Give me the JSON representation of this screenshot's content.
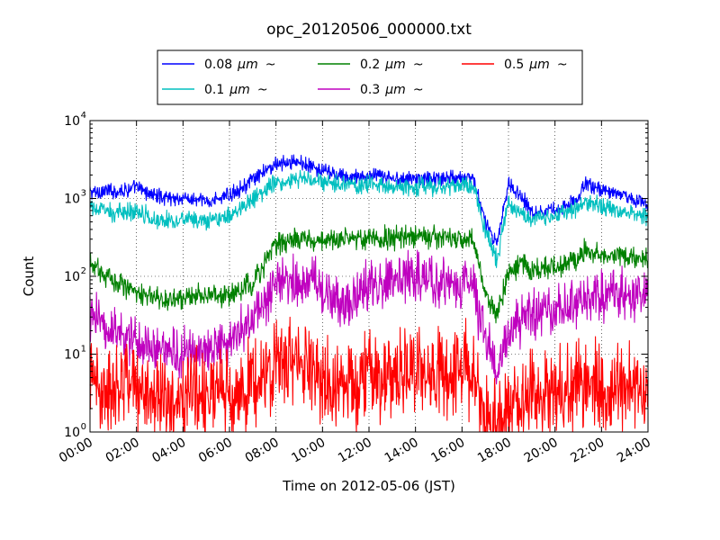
{
  "chart_data": {
    "type": "line",
    "title": "opc_20120506_000000.txt",
    "xlabel": "Time on 2012-05-06 (JST)",
    "ylabel": "Count",
    "x_unit": "hour",
    "xlim": [
      0,
      24
    ],
    "ylim": [
      1,
      10000
    ],
    "yscale": "log",
    "grid": true,
    "legend_placement": "top-center, outside plot",
    "x_tick_labels": [
      "00:00",
      "02:00",
      "04:00",
      "06:00",
      "08:00",
      "10:00",
      "12:00",
      "14:00",
      "16:00",
      "18:00",
      "20:00",
      "22:00",
      "24:00"
    ],
    "y_tick_labels": [
      {
        "base": "10",
        "exp": "0"
      },
      {
        "base": "10",
        "exp": "1"
      },
      {
        "base": "10",
        "exp": "2"
      },
      {
        "base": "10",
        "exp": "3"
      },
      {
        "base": "10",
        "exp": "4"
      }
    ],
    "x": [
      0,
      1,
      2,
      3,
      4,
      5,
      6,
      7,
      8,
      9,
      10,
      11,
      12,
      13,
      14,
      15,
      16,
      16.5,
      17,
      17.5,
      18,
      18.5,
      19,
      20,
      21,
      21.3,
      22,
      23,
      24
    ],
    "series": [
      {
        "name": "0.08",
        "unit": "μm",
        "suffix": "~",
        "color": "#0000ff",
        "values": [
          1200,
          1250,
          1350,
          1050,
          1000,
          900,
          1100,
          1700,
          2800,
          3000,
          2200,
          1900,
          1950,
          1800,
          1800,
          1800,
          1900,
          1800,
          500,
          250,
          1600,
          1100,
          700,
          700,
          950,
          1600,
          1300,
          1100,
          850
        ]
      },
      {
        "name": "0.1",
        "unit": "μm",
        "suffix": "~",
        "color": "#00bfbf",
        "values": [
          750,
          650,
          700,
          520,
          540,
          480,
          600,
          1000,
          1600,
          1800,
          1550,
          1500,
          1500,
          1400,
          1400,
          1450,
          1500,
          1450,
          400,
          160,
          900,
          650,
          550,
          600,
          750,
          900,
          800,
          700,
          580
        ]
      },
      {
        "name": "0.2",
        "unit": "μm",
        "suffix": "~",
        "color": "#008000",
        "values": [
          140,
          90,
          65,
          48,
          55,
          58,
          55,
          80,
          260,
          300,
          280,
          320,
          300,
          310,
          320,
          320,
          300,
          280,
          60,
          32,
          110,
          140,
          120,
          130,
          170,
          210,
          190,
          180,
          160
        ]
      },
      {
        "name": "0.3",
        "unit": "μm",
        "suffix": "~",
        "color": "#bf00bf",
        "values": [
          30,
          20,
          16,
          10,
          11,
          13,
          15,
          24,
          80,
          95,
          75,
          40,
          80,
          85,
          95,
          80,
          75,
          70,
          14,
          6,
          20,
          28,
          32,
          38,
          45,
          50,
          55,
          60,
          55
        ]
      },
      {
        "name": "0.5",
        "unit": "μm",
        "suffix": "~",
        "color": "#ff0000",
        "values": [
          4,
          4,
          4,
          3,
          3,
          3,
          3,
          4,
          7,
          8,
          5,
          4,
          5,
          5,
          6,
          6,
          6,
          6,
          1.5,
          1,
          2,
          3,
          3,
          3,
          4,
          4,
          4,
          4,
          4
        ]
      }
    ]
  }
}
